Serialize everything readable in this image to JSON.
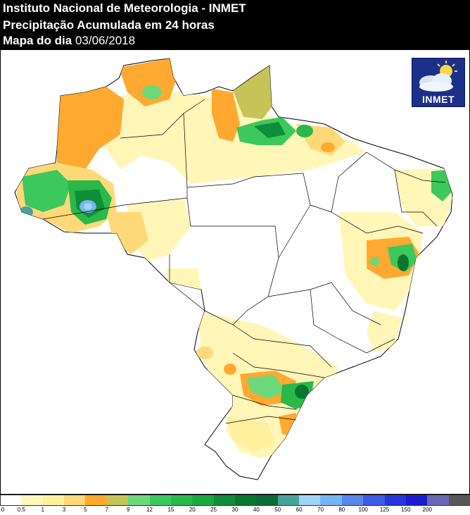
{
  "header": {
    "line1": "Instituto Nacional de Meteorologia - INMET",
    "line2": "Precipitação Acumulada em 24 horas",
    "line3_prefix": "Mapa do dia",
    "date": "03/06/2018"
  },
  "logo": {
    "text": "INMET",
    "icon": "cloud-sun-icon"
  },
  "legend": {
    "bins": [
      {
        "label": "0",
        "color": "#ffffff"
      },
      {
        "label": "0.5",
        "color": "#fff6b8"
      },
      {
        "label": "1",
        "color": "#fff0a0"
      },
      {
        "label": "3",
        "color": "#ffd978"
      },
      {
        "label": "5",
        "color": "#ffa930"
      },
      {
        "label": "7",
        "color": "#c6c458"
      },
      {
        "label": "9",
        "color": "#6cd87a"
      },
      {
        "label": "12",
        "color": "#3cc85c"
      },
      {
        "label": "15",
        "color": "#2ab84a"
      },
      {
        "label": "20",
        "color": "#1aa840"
      },
      {
        "label": "25",
        "color": "#0e8e38"
      },
      {
        "label": "30",
        "color": "#087830"
      },
      {
        "label": "40",
        "color": "#0d6a38"
      },
      {
        "label": "50",
        "color": "#4aa39a"
      },
      {
        "label": "60",
        "color": "#9ed4f4"
      },
      {
        "label": "70",
        "color": "#78b4f0"
      },
      {
        "label": "80",
        "color": "#5888ec"
      },
      {
        "label": "100",
        "color": "#3c5ce4"
      },
      {
        "label": "125",
        "color": "#2636d8"
      },
      {
        "label": "150",
        "color": "#1c1ccc"
      },
      {
        "label": "200",
        "color": "#6868b4"
      },
      {
        "label": "",
        "color": "#585858"
      }
    ]
  }
}
